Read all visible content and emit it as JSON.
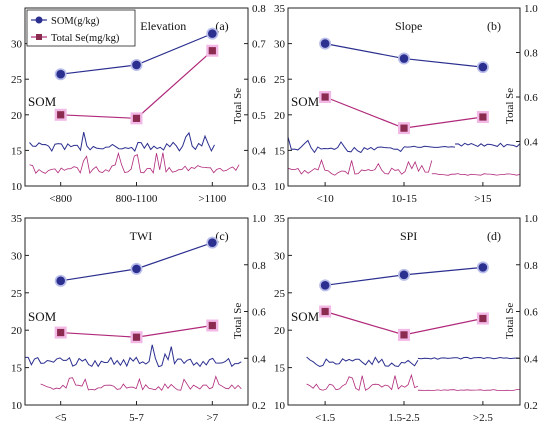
{
  "colors": {
    "som": "#2b2f8f",
    "se": "#b0297a",
    "se_marker": "#8b2b4f",
    "se_glow": "#f2b8e6",
    "som_glow": "#b9bde9"
  },
  "legend": {
    "som_label": "SOM(g/kg)",
    "se_label": "Total Se(mg/kg)"
  },
  "chart_data": [
    {
      "type": "line",
      "title": "Elevation",
      "panel_label": "(a)",
      "legend": "top-left",
      "ylabel_left": "SOM",
      "ylabel_right": "Total Se",
      "categories": [
        "<800",
        "800-1100",
        ">1100"
      ],
      "ylim_left": [
        10,
        35
      ],
      "ylim_right": [
        0.3,
        0.8
      ],
      "left_ticks": [
        "10",
        "15",
        "20",
        "25",
        "30"
      ],
      "right_ticks": [
        "0.3",
        "0.4",
        "0.5",
        "0.6",
        "0.7",
        "0.8"
      ],
      "series": [
        {
          "name": "SOM(g/kg)",
          "axis": "left",
          "values": [
            25.7,
            27.0,
            31.4
          ]
        },
        {
          "name": "Total Se(mg/kg)",
          "axis": "right",
          "values": [
            0.5,
            0.49,
            0.68
          ]
        }
      ]
    },
    {
      "type": "line",
      "title": "Slope",
      "panel_label": "(b)",
      "ylabel_left": "SOM",
      "ylabel_right": "Total Se",
      "categories": [
        "<10",
        "10-15",
        ">15"
      ],
      "ylim_left": [
        10,
        35
      ],
      "ylim_right": [
        0.2,
        1.0
      ],
      "left_ticks": [
        "10",
        "15",
        "20",
        "25",
        "30",
        "35"
      ],
      "right_ticks": [
        "0.4",
        "0.6",
        "0.8",
        "1.0"
      ],
      "series": [
        {
          "name": "SOM(g/kg)",
          "axis": "left",
          "values": [
            30.0,
            27.9,
            26.7
          ]
        },
        {
          "name": "Total Se(mg/kg)",
          "axis": "right",
          "values": [
            0.6,
            0.46,
            0.51
          ]
        }
      ]
    },
    {
      "type": "line",
      "title": "TWI",
      "panel_label": "(c)",
      "ylabel_left": "SOM",
      "ylabel_right": "Total Se",
      "categories": [
        "<5",
        "5-7",
        ">7"
      ],
      "ylim_left": [
        10,
        35
      ],
      "ylim_right": [
        0.2,
        1.0
      ],
      "left_ticks": [
        "10",
        "15",
        "20",
        "25",
        "30",
        "35"
      ],
      "right_ticks": [
        "0.2",
        "0.4",
        "0.6",
        "0.8",
        "1.0"
      ],
      "series": [
        {
          "name": "SOM(g/kg)",
          "axis": "left",
          "values": [
            26.6,
            28.2,
            31.7
          ]
        },
        {
          "name": "Total Se(mg/kg)",
          "axis": "right",
          "values": [
            0.51,
            0.49,
            0.54
          ]
        }
      ]
    },
    {
      "type": "line",
      "title": "SPI",
      "panel_label": "(d)",
      "ylabel_left": "SOM",
      "ylabel_right": "Total Se",
      "categories": [
        "<1.5",
        "1.5-2.5",
        ">2.5"
      ],
      "ylim_left": [
        10,
        35
      ],
      "ylim_right": [
        0.2,
        1.0
      ],
      "left_ticks": [
        "10",
        "15",
        "20",
        "25",
        "30",
        "35"
      ],
      "right_ticks": [
        "0.2",
        "0.4",
        "0.6",
        "0.8",
        "1.0"
      ],
      "series": [
        {
          "name": "SOM(g/kg)",
          "axis": "left",
          "values": [
            26.0,
            27.4,
            28.4
          ]
        },
        {
          "name": "Total Se(mg/kg)",
          "axis": "right",
          "values": [
            0.6,
            0.5,
            0.57
          ]
        }
      ]
    }
  ]
}
